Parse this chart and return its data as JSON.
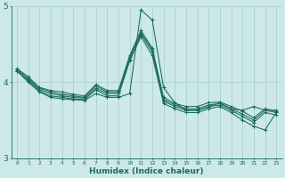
{
  "xlabel": "Humidex (Indice chaleur)",
  "xlim": [
    -0.5,
    23.5
  ],
  "ylim": [
    3,
    5
  ],
  "yticks": [
    3,
    4,
    5
  ],
  "xticks": [
    0,
    1,
    2,
    3,
    4,
    5,
    6,
    7,
    8,
    9,
    10,
    11,
    12,
    13,
    14,
    15,
    16,
    17,
    18,
    19,
    20,
    21,
    22,
    23
  ],
  "bg_color": "#cce8e8",
  "grid_color": "#aacccc",
  "line_color": "#1a6b5a",
  "lines": [
    [
      4.15,
      4.0,
      3.87,
      3.8,
      3.78,
      3.77,
      3.76,
      3.85,
      3.8,
      3.8,
      3.85,
      4.95,
      4.82,
      3.93,
      3.73,
      3.63,
      3.63,
      3.67,
      3.73,
      3.65,
      3.63,
      3.68,
      3.63,
      3.63
    ],
    [
      4.15,
      4.02,
      3.88,
      3.82,
      3.8,
      3.78,
      3.77,
      3.9,
      3.82,
      3.82,
      4.28,
      4.6,
      4.35,
      3.72,
      3.65,
      3.6,
      3.6,
      3.65,
      3.68,
      3.6,
      3.5,
      3.42,
      3.37,
      3.6
    ],
    [
      4.15,
      4.03,
      3.9,
      3.85,
      3.82,
      3.8,
      3.79,
      3.92,
      3.85,
      3.85,
      4.3,
      4.63,
      4.4,
      3.75,
      3.68,
      3.63,
      3.63,
      3.68,
      3.7,
      3.63,
      3.55,
      3.47,
      3.6,
      3.57
    ],
    [
      4.17,
      4.05,
      3.92,
      3.87,
      3.84,
      3.82,
      3.8,
      3.95,
      3.87,
      3.87,
      4.33,
      4.65,
      4.43,
      3.77,
      3.7,
      3.65,
      3.65,
      3.7,
      3.72,
      3.65,
      3.58,
      3.5,
      3.63,
      3.6
    ],
    [
      4.18,
      4.07,
      3.93,
      3.89,
      3.87,
      3.84,
      3.82,
      3.97,
      3.89,
      3.89,
      4.35,
      4.68,
      4.45,
      3.8,
      3.72,
      3.68,
      3.68,
      3.73,
      3.74,
      3.68,
      3.62,
      3.53,
      3.65,
      3.62
    ]
  ]
}
